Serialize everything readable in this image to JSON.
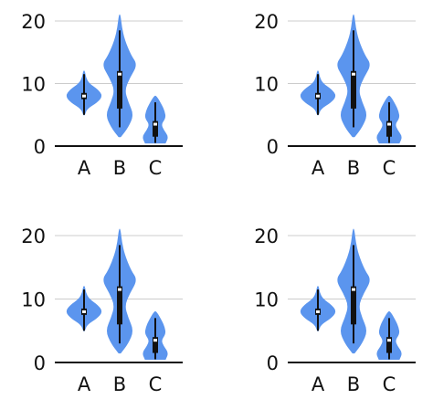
{
  "colors": {
    "violin": "#5b95ee",
    "grid": "#cccccc",
    "axis": "#111111",
    "whisker": "#111111",
    "median_marker": "#ffffff"
  },
  "chart_data": [
    {
      "type": "violin",
      "categories": [
        "A",
        "B",
        "C"
      ],
      "ylim": [
        0,
        21
      ],
      "yticks": [
        0,
        10,
        20
      ],
      "ytick_labels": [
        "0",
        "10",
        "20"
      ],
      "grid": true,
      "violins": [
        {
          "category": "A",
          "min": 5,
          "q1": 7.5,
          "median": 8,
          "q3": 8.5,
          "max": 11.5,
          "profile": [
            [
              5,
              0.02
            ],
            [
              6,
              0.15
            ],
            [
              7,
              0.7
            ],
            [
              8,
              1
            ],
            [
              9,
              0.75
            ],
            [
              10,
              0.25
            ],
            [
              11,
              0.08
            ],
            [
              12,
              0.02
            ]
          ]
        },
        {
          "category": "B",
          "min": 3,
          "q1": 6,
          "median": 11.5,
          "q3": 12,
          "max": 18.5,
          "profile": [
            [
              1.5,
              0.05
            ],
            [
              3,
              0.45
            ],
            [
              5,
              0.75
            ],
            [
              7,
              0.45
            ],
            [
              9,
              0.25
            ],
            [
              11,
              0.55
            ],
            [
              13,
              0.95
            ],
            [
              14.5,
              0.6
            ],
            [
              17,
              0.25
            ],
            [
              19,
              0.1
            ],
            [
              21,
              0.02
            ]
          ]
        },
        {
          "category": "C",
          "min": 0.5,
          "q1": 1.5,
          "median": 3.5,
          "q3": 4,
          "max": 7,
          "profile": [
            [
              0.5,
              0.55
            ],
            [
              1.5,
              0.7
            ],
            [
              2.5,
              0.45
            ],
            [
              3.5,
              0.3
            ],
            [
              4.5,
              0.55
            ],
            [
              5.5,
              0.5
            ],
            [
              6.5,
              0.35
            ],
            [
              8,
              0.05
            ]
          ]
        }
      ]
    },
    {
      "type": "violin",
      "categories": [
        "A",
        "B",
        "C"
      ],
      "ylim": [
        0,
        21
      ],
      "yticks": [
        0,
        10,
        20
      ],
      "ytick_labels": [
        "0",
        "10",
        "20"
      ],
      "grid": true,
      "violins": [
        {
          "category": "A",
          "min": 5,
          "q1": 7.5,
          "median": 8,
          "q3": 8.5,
          "max": 11.5,
          "profile": [
            [
              5,
              0.02
            ],
            [
              6,
              0.15
            ],
            [
              7,
              0.7
            ],
            [
              8,
              1
            ],
            [
              9,
              0.75
            ],
            [
              10,
              0.25
            ],
            [
              11,
              0.08
            ],
            [
              12,
              0.02
            ]
          ]
        },
        {
          "category": "B",
          "min": 3,
          "q1": 6,
          "median": 11.5,
          "q3": 12,
          "max": 18.5,
          "profile": [
            [
              1.5,
              0.05
            ],
            [
              3,
              0.45
            ],
            [
              5,
              0.75
            ],
            [
              7,
              0.45
            ],
            [
              9,
              0.25
            ],
            [
              11,
              0.55
            ],
            [
              13,
              0.95
            ],
            [
              14.5,
              0.6
            ],
            [
              17,
              0.25
            ],
            [
              19,
              0.1
            ],
            [
              21,
              0.02
            ]
          ]
        },
        {
          "category": "C",
          "min": 0.5,
          "q1": 1.5,
          "median": 3.5,
          "q3": 4,
          "max": 7,
          "profile": [
            [
              0.5,
              0.55
            ],
            [
              1.5,
              0.7
            ],
            [
              2.5,
              0.45
            ],
            [
              3.5,
              0.3
            ],
            [
              4.5,
              0.55
            ],
            [
              5.5,
              0.5
            ],
            [
              6.5,
              0.35
            ],
            [
              8,
              0.05
            ]
          ]
        }
      ]
    },
    {
      "type": "violin",
      "categories": [
        "A",
        "B",
        "C"
      ],
      "ylim": [
        0,
        21
      ],
      "yticks": [
        0,
        10,
        20
      ],
      "ytick_labels": [
        "0",
        "10",
        "20"
      ],
      "grid": true,
      "violins": [
        {
          "category": "A",
          "min": 5,
          "q1": 7.5,
          "median": 8,
          "q3": 8.5,
          "max": 11.5,
          "profile": [
            [
              5,
              0.02
            ],
            [
              6,
              0.15
            ],
            [
              7,
              0.7
            ],
            [
              8,
              1
            ],
            [
              9,
              0.75
            ],
            [
              10,
              0.25
            ],
            [
              11,
              0.08
            ],
            [
              12,
              0.02
            ]
          ]
        },
        {
          "category": "B",
          "min": 3,
          "q1": 6,
          "median": 11.5,
          "q3": 12,
          "max": 18.5,
          "profile": [
            [
              1.5,
              0.05
            ],
            [
              3,
              0.45
            ],
            [
              5,
              0.75
            ],
            [
              7,
              0.45
            ],
            [
              9,
              0.25
            ],
            [
              11,
              0.55
            ],
            [
              13,
              0.95
            ],
            [
              14.5,
              0.6
            ],
            [
              17,
              0.25
            ],
            [
              19,
              0.1
            ],
            [
              21,
              0.02
            ]
          ]
        },
        {
          "category": "C",
          "min": 0.5,
          "q1": 1.5,
          "median": 3.5,
          "q3": 4,
          "max": 7,
          "profile": [
            [
              0.5,
              0.55
            ],
            [
              1.5,
              0.7
            ],
            [
              2.5,
              0.45
            ],
            [
              3.5,
              0.3
            ],
            [
              4.5,
              0.55
            ],
            [
              5.5,
              0.5
            ],
            [
              6.5,
              0.35
            ],
            [
              8,
              0.05
            ]
          ]
        }
      ]
    },
    {
      "type": "violin",
      "categories": [
        "A",
        "B",
        "C"
      ],
      "ylim": [
        0,
        21
      ],
      "yticks": [
        0,
        10,
        20
      ],
      "ytick_labels": [
        "0",
        "10",
        "20"
      ],
      "grid": true,
      "violins": [
        {
          "category": "A",
          "min": 5,
          "q1": 7.5,
          "median": 8,
          "q3": 8.5,
          "max": 11.5,
          "profile": [
            [
              5,
              0.02
            ],
            [
              6,
              0.15
            ],
            [
              7,
              0.7
            ],
            [
              8,
              1
            ],
            [
              9,
              0.75
            ],
            [
              10,
              0.25
            ],
            [
              11,
              0.08
            ],
            [
              12,
              0.02
            ]
          ]
        },
        {
          "category": "B",
          "min": 3,
          "q1": 6,
          "median": 11.5,
          "q3": 12,
          "max": 18.5,
          "profile": [
            [
              1.5,
              0.05
            ],
            [
              3,
              0.45
            ],
            [
              5,
              0.75
            ],
            [
              7,
              0.45
            ],
            [
              9,
              0.25
            ],
            [
              11,
              0.55
            ],
            [
              13,
              0.95
            ],
            [
              14.5,
              0.6
            ],
            [
              17,
              0.25
            ],
            [
              19,
              0.1
            ],
            [
              21,
              0.02
            ]
          ]
        },
        {
          "category": "C",
          "min": 0.5,
          "q1": 1.5,
          "median": 3.5,
          "q3": 4,
          "max": 7,
          "profile": [
            [
              0.5,
              0.55
            ],
            [
              1.5,
              0.7
            ],
            [
              2.5,
              0.45
            ],
            [
              3.5,
              0.3
            ],
            [
              4.5,
              0.55
            ],
            [
              5.5,
              0.5
            ],
            [
              6.5,
              0.35
            ],
            [
              8,
              0.05
            ]
          ]
        }
      ]
    }
  ]
}
